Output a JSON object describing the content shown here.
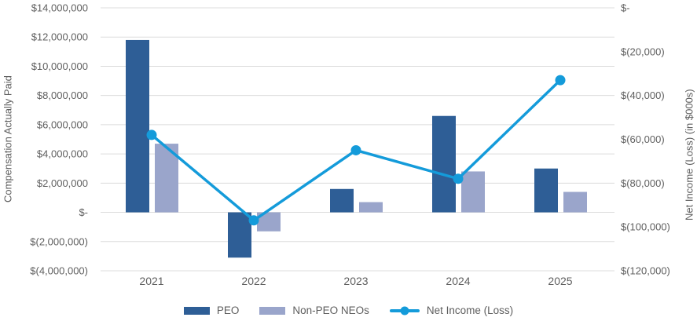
{
  "chart_data": {
    "type": "combo-bar-line",
    "categories": [
      "2021",
      "2022",
      "2023",
      "2024",
      "2025"
    ],
    "series": [
      {
        "name": "PEO",
        "chart": "bar",
        "axis": "left",
        "color": "#2E5E96",
        "values": [
          11800000,
          -3100000,
          1600000,
          6600000,
          3000000
        ]
      },
      {
        "name": "Non-PEO NEOs",
        "chart": "bar",
        "axis": "left",
        "color": "#9AA5CB",
        "values": [
          4700000,
          -1300000,
          700000,
          2800000,
          1400000
        ]
      },
      {
        "name": "Net Income (Loss)",
        "chart": "line",
        "axis": "right",
        "color": "#149BDA",
        "values": [
          -58000,
          -97000,
          -65000,
          -78000,
          -33000
        ]
      }
    ],
    "left_axis": {
      "label": "Compensation Actually Paid",
      "min": -4000000,
      "max": 14000000,
      "step": 2000000,
      "tick_labels": [
        "$14,000,000",
        "$12,000,000",
        "$10,000,000",
        "$8,000,000",
        "$6,000,000",
        "$4,000,000",
        "$2,000,000",
        "$-",
        "$(2,000,000)",
        "$(4,000,000)"
      ]
    },
    "right_axis": {
      "label": "Net Income (Loss) (in $000s)",
      "min": -120000,
      "max": 0,
      "step": 20000,
      "tick_labels": [
        "$-",
        "$(20,000)",
        "$(40,000)",
        "$(60,000)",
        "$(80,000)",
        "$(100,000)",
        "$(120,000)"
      ]
    },
    "legend_position": "bottom",
    "grid": true,
    "gridline_color": "#DCDCDC"
  }
}
